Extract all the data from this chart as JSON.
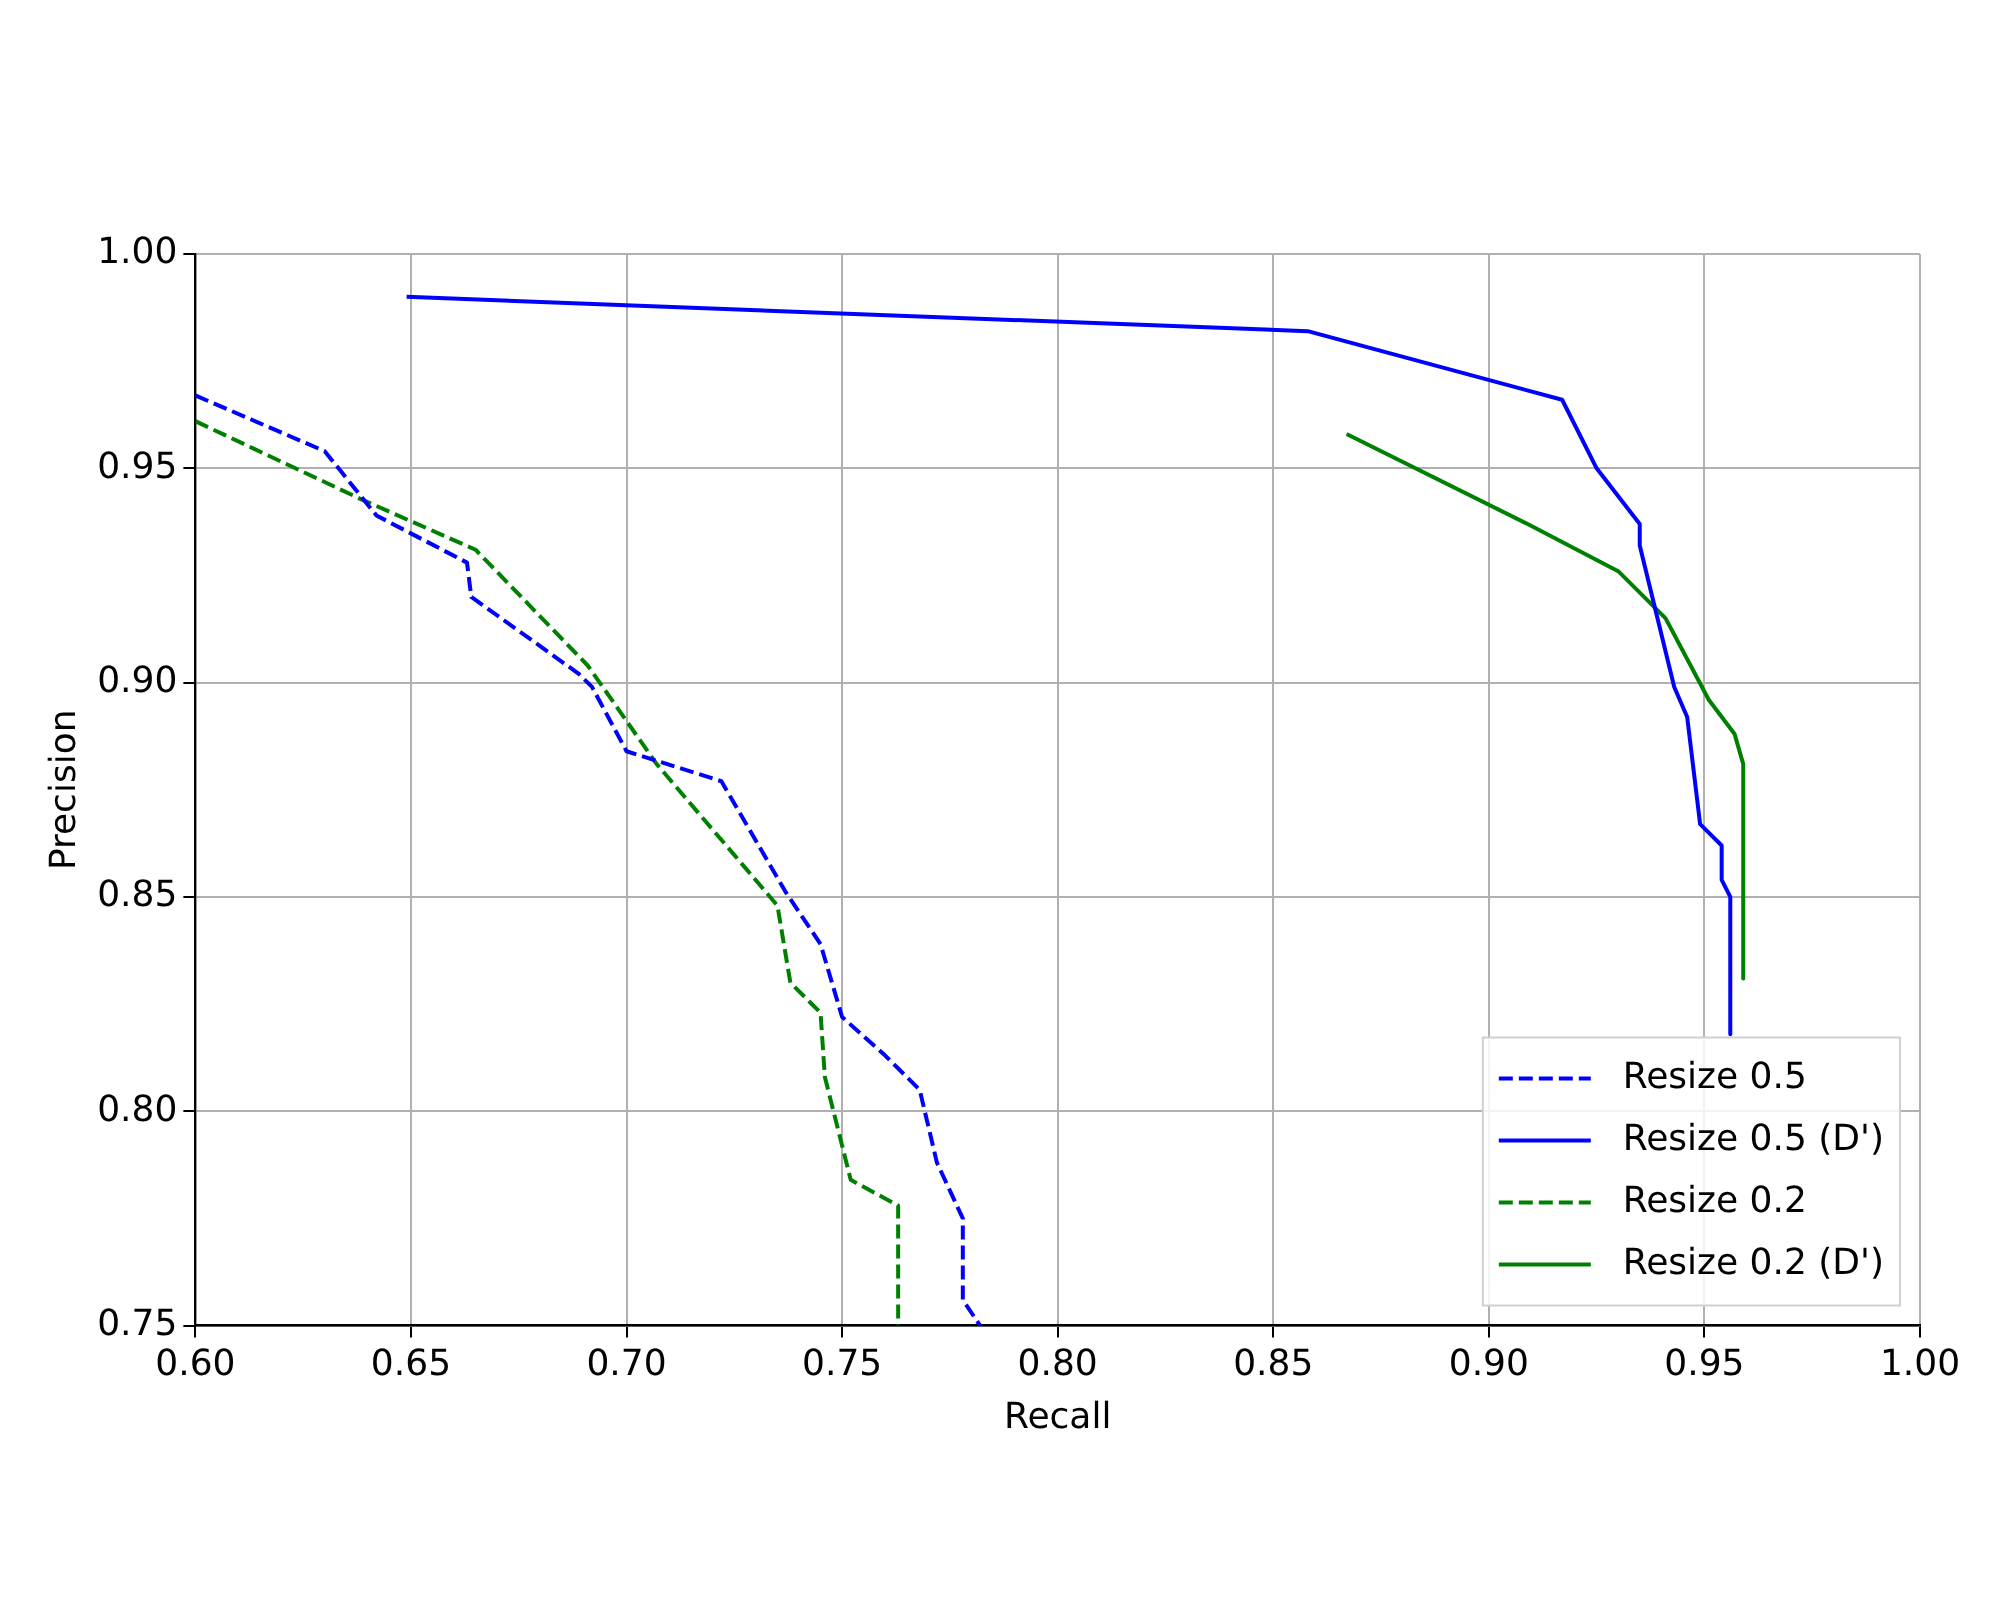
{
  "chart_data": {
    "type": "line",
    "xlabel": "Recall",
    "ylabel": "Precision",
    "xlim": [
      0.6,
      1.0
    ],
    "ylim": [
      0.75,
      1.0
    ],
    "xticks": [
      {
        "value": 0.6,
        "label": "0.60"
      },
      {
        "value": 0.65,
        "label": "0.65"
      },
      {
        "value": 0.7,
        "label": "0.70"
      },
      {
        "value": 0.75,
        "label": "0.75"
      },
      {
        "value": 0.8,
        "label": "0.80"
      },
      {
        "value": 0.85,
        "label": "0.85"
      },
      {
        "value": 0.9,
        "label": "0.90"
      },
      {
        "value": 0.95,
        "label": "0.95"
      },
      {
        "value": 1.0,
        "label": "1.00"
      }
    ],
    "yticks": [
      {
        "value": 0.75,
        "label": "0.75"
      },
      {
        "value": 0.8,
        "label": "0.80"
      },
      {
        "value": 0.85,
        "label": "0.85"
      },
      {
        "value": 0.9,
        "label": "0.90"
      },
      {
        "value": 0.95,
        "label": "0.95"
      },
      {
        "value": 1.0,
        "label": "1.00"
      }
    ],
    "grid": true,
    "legend": "bottom right",
    "marker": "none",
    "series": [
      {
        "name": "Resize 0.5",
        "color": "#0000ff",
        "line_style": "dashed",
        "x": [
          0.6,
          0.63,
          0.634,
          0.642,
          0.663,
          0.664,
          0.689,
          0.692,
          0.7,
          0.722,
          0.737,
          0.745,
          0.75,
          0.76,
          0.768,
          0.772,
          0.778,
          0.778,
          0.782
        ],
        "values": [
          0.967,
          0.954,
          0.949,
          0.939,
          0.928,
          0.92,
          0.902,
          0.899,
          0.884,
          0.877,
          0.851,
          0.839,
          0.822,
          0.813,
          0.805,
          0.788,
          0.775,
          0.756,
          0.75
        ]
      },
      {
        "name": "Resize 0.5 (D')",
        "color": "#0000ff",
        "line_style": "solid",
        "x": [
          0.649,
          0.858,
          0.917,
          0.925,
          0.935,
          0.935,
          0.943,
          0.946,
          0.949,
          0.954,
          0.954,
          0.956,
          0.956
        ],
        "values": [
          0.99,
          0.982,
          0.966,
          0.95,
          0.937,
          0.932,
          0.899,
          0.892,
          0.867,
          0.862,
          0.854,
          0.85,
          0.818
        ]
      },
      {
        "name": "Resize 0.2",
        "color": "#008000",
        "line_style": "dashed",
        "x": [
          0.6,
          0.638,
          0.665,
          0.691,
          0.707,
          0.735,
          0.738,
          0.745,
          0.746,
          0.752,
          0.763,
          0.763
        ],
        "values": [
          0.961,
          0.943,
          0.931,
          0.904,
          0.881,
          0.848,
          0.83,
          0.823,
          0.808,
          0.784,
          0.778,
          0.75
        ]
      },
      {
        "name": "Resize 0.2 (D')",
        "color": "#008000",
        "line_style": "solid",
        "x": [
          0.867,
          0.909,
          0.93,
          0.941,
          0.951,
          0.957,
          0.959,
          0.959
        ],
        "values": [
          0.958,
          0.937,
          0.926,
          0.915,
          0.896,
          0.888,
          0.881,
          0.831
        ]
      }
    ]
  }
}
